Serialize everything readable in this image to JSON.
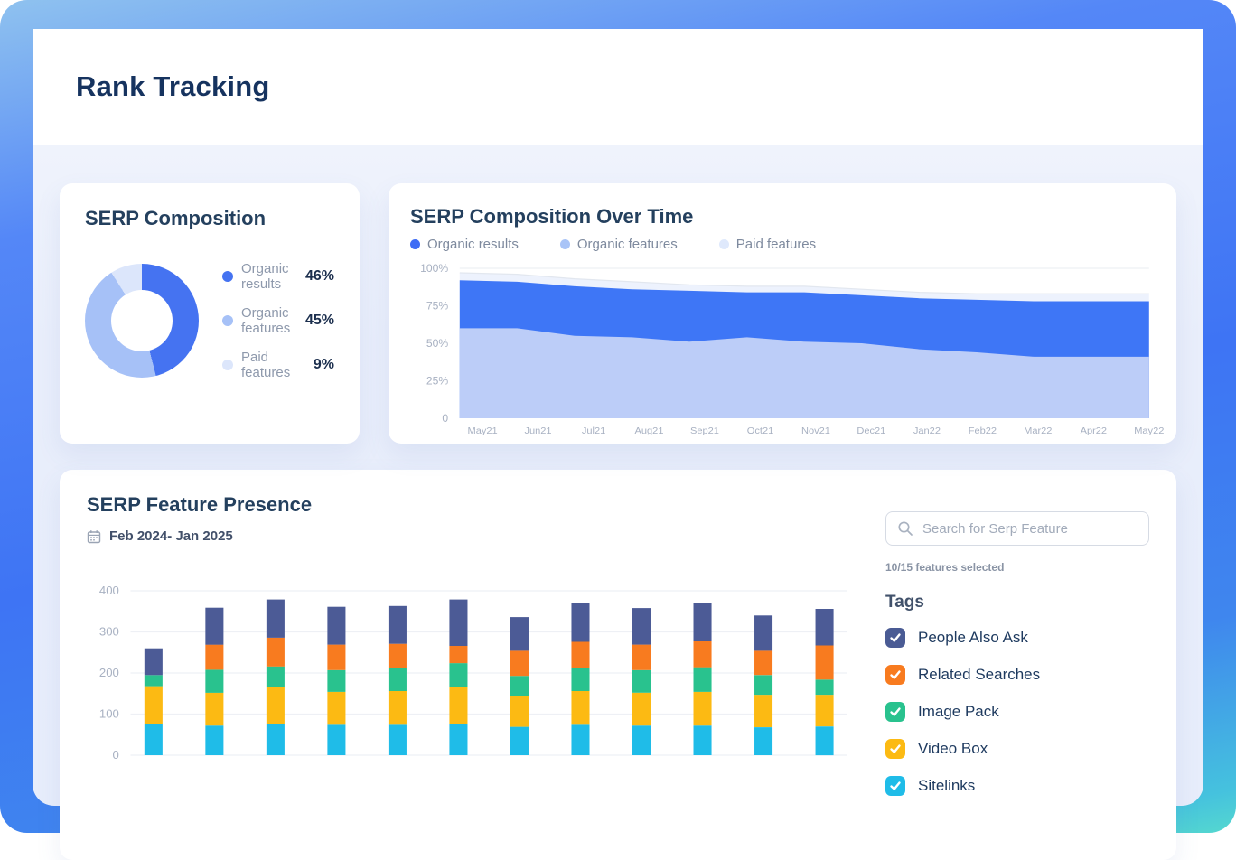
{
  "header": {
    "title": "Rank Tracking"
  },
  "cards": {
    "composition": {
      "title": "SERP Composition"
    },
    "over_time": {
      "title": "SERP Composition Over Time"
    },
    "presence": {
      "title": "SERP Feature Presence",
      "date_range": "Feb 2024- Jan 2025"
    }
  },
  "feature_panel": {
    "search_placeholder": "Search for Serp Feature",
    "selected_summary": "10/15 features selected",
    "tags_title": "Tags",
    "features": [
      {
        "label": "People Also Ask",
        "checked": true,
        "color": "#4a5b94"
      },
      {
        "label": "Related Searches",
        "checked": true,
        "color": "#f87b1f"
      },
      {
        "label": "Image Pack",
        "checked": true,
        "color": "#29c28e"
      },
      {
        "label": "Video Box",
        "checked": true,
        "color": "#fcba13"
      },
      {
        "label": "Sitelinks",
        "checked": true,
        "color": "#1fbce8"
      }
    ]
  },
  "chart_data": [
    {
      "id": "composition_donut",
      "type": "pie",
      "donut": true,
      "title": "SERP Composition",
      "slices": [
        {
          "label": "Organic results",
          "value": 46,
          "display": "46%",
          "color": "#4573f1"
        },
        {
          "label": "Organic features",
          "value": 45,
          "display": "45%",
          "color": "#a6c1f7"
        },
        {
          "label": "Paid features",
          "value": 9,
          "display": "9%",
          "color": "#dce6fb"
        }
      ]
    },
    {
      "id": "over_time_area",
      "type": "area",
      "stacked": true,
      "title": "SERP Composition Over Time",
      "x": [
        "May21",
        "Jun21",
        "Jul21",
        "Aug21",
        "Sep21",
        "Oct21",
        "Nov21",
        "Dec21",
        "Jan22",
        "Feb22",
        "Mar22",
        "Apr22",
        "May22"
      ],
      "ylim": [
        0,
        100
      ],
      "y_ticks": [
        {
          "value": 100,
          "label": "100%"
        },
        {
          "value": 75,
          "label": "75%"
        },
        {
          "value": 50,
          "label": "50%"
        },
        {
          "value": 25,
          "label": "25%"
        },
        {
          "value": 0,
          "label": "0"
        }
      ],
      "legend": [
        {
          "label": "Organic results",
          "color": "#3f6df5"
        },
        {
          "label": "Organic features",
          "color": "#a9c4f7"
        },
        {
          "label": "Paid features",
          "color": "#dfe9fc"
        }
      ],
      "legend_position": "top",
      "grid": "top-line-only",
      "series_bottom_to_top": [
        {
          "name": "Organic features",
          "color": "#bccdf8",
          "cumulative_top": [
            60,
            60,
            55,
            54,
            51,
            54,
            51,
            50,
            46,
            44,
            41,
            41,
            41
          ]
        },
        {
          "name": "Organic results",
          "color": "#3e76f6",
          "cumulative_top": [
            92,
            91,
            88,
            86,
            85,
            84,
            84,
            82,
            80,
            79,
            78,
            78,
            78
          ]
        },
        {
          "name": "Paid features",
          "color": "#edf2fd",
          "cumulative_top": [
            97,
            96,
            93,
            91,
            89,
            88,
            88,
            86,
            84,
            83,
            83,
            83,
            83
          ]
        }
      ]
    },
    {
      "id": "feature_presence_bars",
      "type": "bar",
      "stacked": true,
      "title": "SERP Feature Presence",
      "bar_count": 12,
      "x_labels_visible": false,
      "ylim": [
        0,
        400
      ],
      "y_ticks": [
        0,
        100,
        200,
        300,
        400
      ],
      "grid": "horizontal",
      "series_bottom_to_top": [
        {
          "name": "Sitelinks",
          "color": "#1fbce8",
          "values": [
            77,
            72,
            75,
            74,
            74,
            75,
            69,
            74,
            72,
            72,
            68,
            70
          ]
        },
        {
          "name": "Video Box",
          "color": "#fcba13",
          "values": [
            91,
            80,
            91,
            80,
            82,
            92,
            75,
            82,
            80,
            82,
            79,
            77
          ]
        },
        {
          "name": "Image Pack",
          "color": "#29c28e",
          "values": [
            27,
            56,
            50,
            53,
            56,
            57,
            49,
            55,
            55,
            60,
            48,
            37
          ]
        },
        {
          "name": "Related Searches",
          "color": "#f87b1f",
          "values": [
            0,
            61,
            70,
            62,
            59,
            42,
            61,
            65,
            62,
            63,
            59,
            83
          ]
        },
        {
          "name": "People Also Ask",
          "color": "#4c5b96",
          "values": [
            65,
            90,
            93,
            92,
            92,
            113,
            82,
            94,
            89,
            93,
            86,
            89
          ]
        }
      ]
    }
  ]
}
